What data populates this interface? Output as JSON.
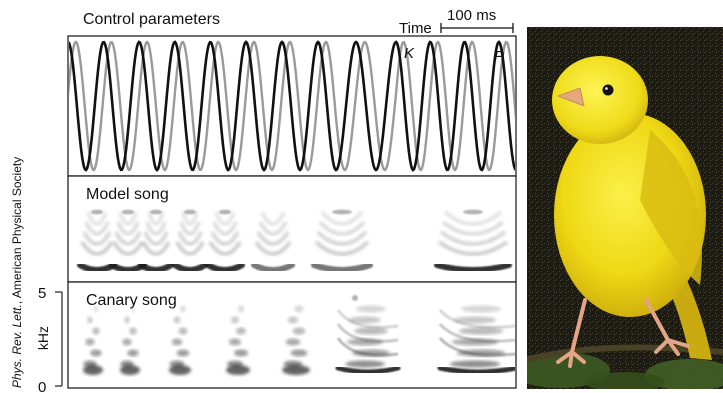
{
  "panels": {
    "control": {
      "title": "Control parameters",
      "time_label": "Time",
      "scale_label": "100 ms",
      "curve_k_label": "K",
      "curve_p_label": "P"
    },
    "model": {
      "title": "Model song"
    },
    "canary": {
      "title": "Canary song",
      "axis_max": "5",
      "axis_min": "0",
      "axis_unit": "kHz"
    }
  },
  "credit": {
    "journal": "Phys. Rev. Lett.",
    "publisher": ", American Physical Society"
  },
  "colors": {
    "curve_k": "#111111",
    "curve_p": "#9a9a9a",
    "bird_yellow": "#f2e21a",
    "background_dark": "#1c1c14"
  },
  "icons": {
    "photo": "canary-photo"
  }
}
